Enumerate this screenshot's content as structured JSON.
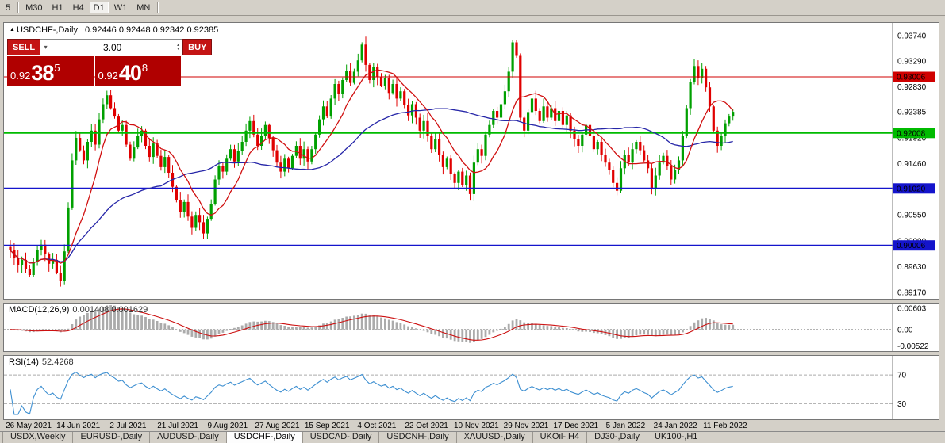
{
  "toolbar": {
    "periods": [
      {
        "label": "5",
        "active": false
      },
      {
        "label": "M30",
        "active": false
      },
      {
        "label": "H1",
        "active": false
      },
      {
        "label": "H4",
        "active": false
      },
      {
        "label": "D1",
        "active": true
      },
      {
        "label": "W1",
        "active": false
      },
      {
        "label": "MN",
        "active": false
      }
    ]
  },
  "chart_header": {
    "symbol": "USDCHF-,Daily",
    "ohlc": "0.92446 0.92448 0.92342 0.92385"
  },
  "trade_widget": {
    "sell": "SELL",
    "buy": "BUY",
    "volume": "3.00",
    "bid": {
      "prefix": "0.92",
      "big": "38",
      "sup": "5"
    },
    "ask": {
      "prefix": "0.92",
      "big": "40",
      "sup": "8"
    }
  },
  "macd_panel": {
    "name": "MACD(12,26,9)",
    "values": "0.001408 0.001629",
    "axis_labels": [
      "0.00603",
      "0.00",
      "-0.00522"
    ]
  },
  "rsi_panel": {
    "name": "RSI(14)",
    "value": "52.4268",
    "axis_labels": [
      "70",
      "30"
    ]
  },
  "tabs": [
    {
      "label": "USDX,Weekly",
      "active": false
    },
    {
      "label": "EURUSD-,Daily",
      "active": false
    },
    {
      "label": "AUDUSD-,Daily",
      "active": false
    },
    {
      "label": "USDCHF-,Daily",
      "active": true
    },
    {
      "label": "USDCAD-,Daily",
      "active": false
    },
    {
      "label": "USDCNH-,Daily",
      "active": false
    },
    {
      "label": "XAUUSD-,Daily",
      "active": false
    },
    {
      "label": "UKOil-,H4",
      "active": false
    },
    {
      "label": "DJ30-,Daily",
      "active": false
    },
    {
      "label": "UK100-,H1",
      "active": false
    }
  ],
  "chart_data": {
    "type": "candlestick",
    "symbol": "USDCHF",
    "period": "Daily",
    "current_bid": 0.92385,
    "current_ask": 0.92408,
    "first_open": 0.8998,
    "wick_base": 0.0013,
    "candle_up_color": "#00a000",
    "candle_down_color": "#e00000",
    "ma_fast": {
      "period": 10,
      "color": "#d01010"
    },
    "ma_slow": {
      "period": 40,
      "color": "#2626a8"
    },
    "y_axis": {
      "top_price": 0.9374,
      "bottom_price": 0.8917,
      "ticks": [
        "0.93740",
        "0.93290",
        "0.92830",
        "0.92385",
        "0.91920",
        "0.91460",
        "0.91020",
        "0.90550",
        "0.90090",
        "0.89630",
        "0.89170"
      ]
    },
    "hlines": [
      {
        "price": 0.93006,
        "label": "0.93006",
        "color": "#d00000",
        "width": 1
      },
      {
        "price": 0.92008,
        "label": "0.92008",
        "color": "#00bb00",
        "width": 2
      },
      {
        "price": 0.9102,
        "label": "0.91020",
        "color": "#1414cc",
        "width": 2
      },
      {
        "price": 0.90006,
        "label": "0.90006",
        "color": "#1414cc",
        "width": 2
      }
    ],
    "date_labels": [
      "26 May 2021",
      "14 Jun 2021",
      "2 Jul 2021",
      "21 Jul 2021",
      "9 Aug 2021",
      "27 Aug 2021",
      "15 Sep 2021",
      "4 Oct 2021",
      "22 Oct 2021",
      "10 Nov 2021",
      "29 Nov 2021",
      "17 Dec 2021",
      "5 Jan 2022",
      "24 Jan 2022",
      "11 Feb 2022"
    ],
    "closes": [
      0.8992,
      0.8978,
      0.8965,
      0.8975,
      0.8958,
      0.8948,
      0.8972,
      0.8992,
      0.9002,
      0.8985,
      0.8968,
      0.8975,
      0.8952,
      0.8938,
      0.899,
      0.9068,
      0.9152,
      0.9192,
      0.917,
      0.9152,
      0.9185,
      0.9205,
      0.918,
      0.9225,
      0.9252,
      0.9268,
      0.9245,
      0.923,
      0.9205,
      0.9215,
      0.918,
      0.9155,
      0.9175,
      0.9195,
      0.9205,
      0.9178,
      0.9158,
      0.9182,
      0.916,
      0.914,
      0.9158,
      0.913,
      0.9105,
      0.9082,
      0.906,
      0.9078,
      0.9052,
      0.9032,
      0.9055,
      0.9042,
      0.9022,
      0.9048,
      0.9075,
      0.9118,
      0.9142,
      0.9132,
      0.9155,
      0.9172,
      0.915,
      0.9168,
      0.9185,
      0.9205,
      0.9222,
      0.9198,
      0.9178,
      0.9195,
      0.9215,
      0.9192,
      0.917,
      0.9148,
      0.9132,
      0.9155,
      0.9138,
      0.916,
      0.9178,
      0.9155,
      0.9172,
      0.915,
      0.9172,
      0.9198,
      0.9225,
      0.9248,
      0.923,
      0.9262,
      0.9288,
      0.927,
      0.9295,
      0.9312,
      0.929,
      0.931,
      0.933,
      0.9358,
      0.9322,
      0.9295,
      0.9318,
      0.93,
      0.9285,
      0.9298,
      0.9272,
      0.9288,
      0.9262,
      0.9275,
      0.925,
      0.9232,
      0.9252,
      0.9228,
      0.9205,
      0.9222,
      0.9195,
      0.9172,
      0.919,
      0.9162,
      0.914,
      0.9155,
      0.9128,
      0.9112,
      0.9132,
      0.9108,
      0.9125,
      0.9092,
      0.9148,
      0.9172,
      0.916,
      0.9198,
      0.9215,
      0.924,
      0.9228,
      0.9252,
      0.9275,
      0.931,
      0.9362,
      0.9338,
      0.9228,
      0.9205,
      0.9238,
      0.9262,
      0.924,
      0.9222,
      0.9248,
      0.9228,
      0.9245,
      0.9222,
      0.924,
      0.9215,
      0.9232,
      0.9205,
      0.919,
      0.9178,
      0.9198,
      0.9215,
      0.9195,
      0.9172,
      0.9185,
      0.9162,
      0.9148,
      0.9135,
      0.9112,
      0.9098,
      0.9138,
      0.9162,
      0.9148,
      0.9172,
      0.9185,
      0.917,
      0.9152,
      0.9138,
      0.9102,
      0.9125,
      0.9148,
      0.916,
      0.9142,
      0.9118,
      0.9135,
      0.9152,
      0.9195,
      0.9245,
      0.9292,
      0.932,
      0.9298,
      0.9315,
      0.9282,
      0.9248,
      0.9205,
      0.9178,
      0.9195,
      0.9218,
      0.923,
      0.92385
    ],
    "macd": {
      "params": "12,26,9",
      "histogram_color": "#ababab",
      "signal_color": "#cc1111",
      "max": 0.00603,
      "min": -0.00522
    },
    "rsi": {
      "period": 14,
      "color": "#3d8fd1",
      "levels": [
        70,
        30
      ],
      "scale_max": 90,
      "scale_min": 15
    }
  }
}
